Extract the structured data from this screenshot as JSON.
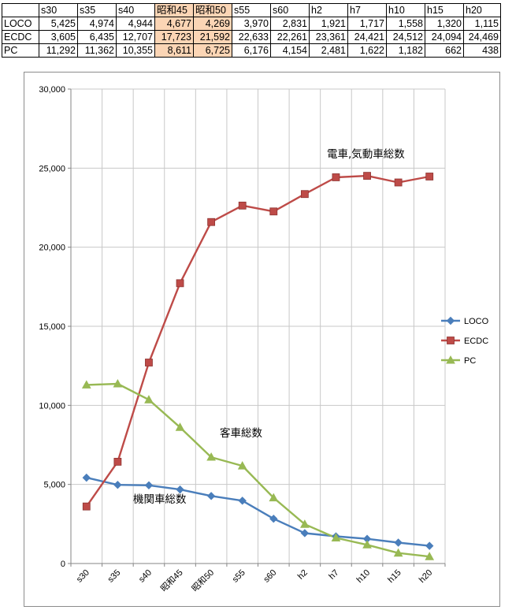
{
  "table": {
    "headers": [
      "s30",
      "s35",
      "s40",
      "昭和45",
      "昭和50",
      "s55",
      "s60",
      "h2",
      "h7",
      "h10",
      "h15",
      "h20"
    ],
    "highlight_columns": [
      3,
      4
    ],
    "highlight_color": "#fbd5b5",
    "rows": [
      {
        "label": "LOCO",
        "values": [
          "5,425",
          "4,974",
          "4,944",
          "4,677",
          "4,269",
          "3,970",
          "2,831",
          "1,921",
          "1,717",
          "1,558",
          "1,320",
          "1,115"
        ]
      },
      {
        "label": "ECDC",
        "values": [
          "3,605",
          "6,435",
          "12,707",
          "17,723",
          "21,592",
          "22,633",
          "22,261",
          "23,361",
          "24,421",
          "24,512",
          "24,094",
          "24,469"
        ]
      },
      {
        "label": "PC",
        "values": [
          "11,292",
          "11,362",
          "10,355",
          "8,611",
          "6,725",
          "6,176",
          "4,154",
          "2,481",
          "1,622",
          "1,182",
          "662",
          "438"
        ]
      }
    ]
  },
  "chart_data": {
    "type": "line",
    "categories": [
      "s30",
      "s35",
      "s40",
      "昭和45",
      "昭和50",
      "s55",
      "s60",
      "h2",
      "h7",
      "h10",
      "h15",
      "h20"
    ],
    "series": [
      {
        "name": "LOCO",
        "color": "#4a7ebb",
        "marker": "diamond",
        "values": [
          5425,
          4974,
          4944,
          4677,
          4269,
          3970,
          2831,
          1921,
          1717,
          1558,
          1320,
          1115
        ]
      },
      {
        "name": "ECDC",
        "color": "#be4b48",
        "marker": "square",
        "values": [
          3605,
          6435,
          12707,
          17723,
          21592,
          22633,
          22261,
          23361,
          24421,
          24512,
          24094,
          24469
        ]
      },
      {
        "name": "PC",
        "color": "#98b954",
        "marker": "triangle",
        "values": [
          11292,
          11362,
          10355,
          8611,
          6725,
          6176,
          4154,
          2481,
          1622,
          1182,
          662,
          438
        ]
      }
    ],
    "ylim": [
      0,
      30000
    ],
    "yticks": [
      0,
      5000,
      10000,
      15000,
      20000,
      25000,
      30000
    ],
    "ytick_labels": [
      "0",
      "5,000",
      "10,000",
      "15,000",
      "20,000",
      "25,000",
      "30,000"
    ],
    "grid": true,
    "legend_position": "right",
    "annotations": [
      {
        "text": "電車,気動車総数",
        "series": "ECDC"
      },
      {
        "text": "客車総数",
        "series": "PC"
      },
      {
        "text": "機関車総数",
        "series": "LOCO"
      }
    ]
  }
}
